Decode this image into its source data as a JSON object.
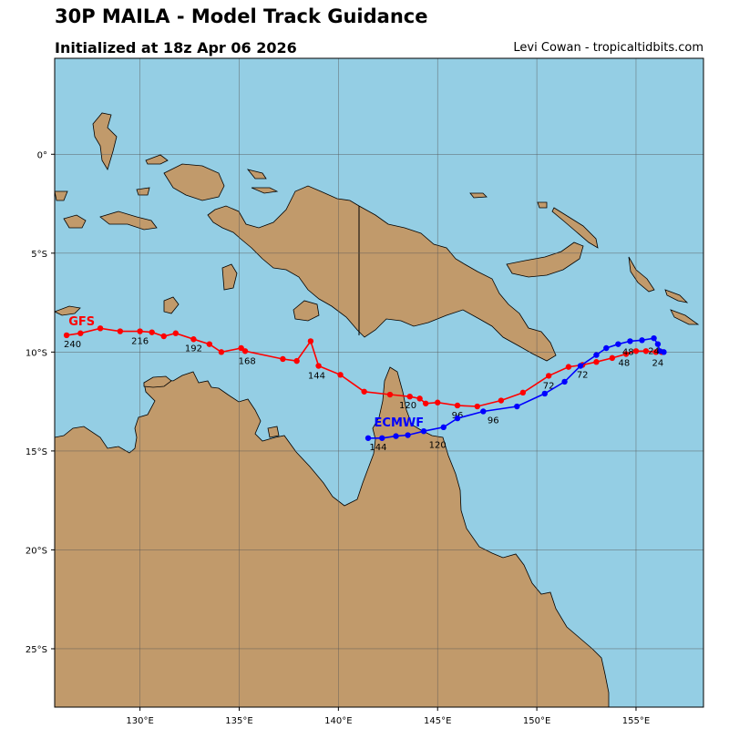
{
  "header": {
    "title": "30P MAILA - Model Track Guidance",
    "subtitle": "Initialized at 18z Apr 06 2026",
    "credit": "Levi Cowan - tropicaltidbits.com"
  },
  "colors": {
    "ocean": "#94cee4",
    "land": "#c19a6b",
    "gfs": "#ff0000",
    "ecmwf": "#0000ff",
    "grid": "#555555"
  },
  "map": {
    "lon_range": [
      125.7,
      158.4
    ],
    "lat_range": [
      -27.95,
      4.85
    ],
    "lon_ticks": [
      {
        "value": 130,
        "label": "130°E"
      },
      {
        "value": 135,
        "label": "135°E"
      },
      {
        "value": 140,
        "label": "140°E"
      },
      {
        "value": 145,
        "label": "145°E"
      },
      {
        "value": 150,
        "label": "150°E"
      },
      {
        "value": 155,
        "label": "155°E"
      }
    ],
    "lat_ticks": [
      {
        "value": 0,
        "label": "0°"
      },
      {
        "value": -5,
        "label": "5°S"
      },
      {
        "value": -10,
        "label": "10°S"
      },
      {
        "value": -15,
        "label": "15°S"
      },
      {
        "value": -20,
        "label": "20°S"
      },
      {
        "value": -25,
        "label": "25°S"
      }
    ]
  },
  "chart_data": {
    "type": "scatter",
    "title": "30P MAILA - Model Track Guidance",
    "series": [
      {
        "name": "GFS",
        "color": "#ff0000",
        "points": [
          [
            156.3,
            -10.0
          ],
          [
            156.0,
            -10.0
          ],
          [
            155.5,
            -9.95
          ],
          [
            155.0,
            -9.95
          ],
          [
            154.5,
            -10.1
          ],
          [
            153.8,
            -10.3
          ],
          [
            153.0,
            -10.5
          ],
          [
            152.3,
            -10.65
          ],
          [
            151.6,
            -10.75
          ],
          [
            150.6,
            -11.2
          ],
          [
            149.3,
            -12.05
          ],
          [
            148.2,
            -12.45
          ],
          [
            147.0,
            -12.75
          ],
          [
            146.0,
            -12.7
          ],
          [
            145.0,
            -12.55
          ],
          [
            144.4,
            -12.6
          ],
          [
            144.1,
            -12.35
          ],
          [
            143.6,
            -12.25
          ],
          [
            142.6,
            -12.15
          ],
          [
            141.3,
            -12.0
          ],
          [
            140.1,
            -11.15
          ],
          [
            139.0,
            -10.7
          ],
          [
            138.6,
            -9.45
          ],
          [
            137.9,
            -10.45
          ],
          [
            137.2,
            -10.35
          ],
          [
            135.3,
            -9.95
          ],
          [
            135.1,
            -9.8
          ],
          [
            134.1,
            -10.0
          ],
          [
            133.5,
            -9.6
          ],
          [
            132.7,
            -9.35
          ],
          [
            131.8,
            -9.05
          ],
          [
            131.2,
            -9.2
          ],
          [
            130.6,
            -9.0
          ],
          [
            130.0,
            -8.95
          ],
          [
            129.0,
            -8.95
          ],
          [
            128.0,
            -8.8
          ],
          [
            127.0,
            -9.05
          ],
          [
            126.3,
            -9.15
          ]
        ],
        "hour_labels": [
          {
            "text": "24",
            "lon": 156.1,
            "lat": -10.7
          },
          {
            "text": "48",
            "lon": 154.4,
            "lat": -10.7
          },
          {
            "text": "72",
            "lon": 150.6,
            "lat": -11.85
          },
          {
            "text": "96",
            "lon": 146.0,
            "lat": -13.35
          },
          {
            "text": "120",
            "lon": 143.5,
            "lat": -12.85
          },
          {
            "text": "144",
            "lon": 138.9,
            "lat": -11.35
          },
          {
            "text": "168",
            "lon": 135.4,
            "lat": -10.6
          },
          {
            "text": "192",
            "lon": 132.7,
            "lat": -9.95
          },
          {
            "text": "216",
            "lon": 130.0,
            "lat": -9.6
          },
          {
            "text": "240",
            "lon": 126.6,
            "lat": -9.75
          }
        ],
        "model_label": {
          "text": "GFS",
          "lon": 126.4,
          "lat": -8.65
        }
      },
      {
        "name": "ECMWF",
        "color": "#0000ff",
        "points": [
          [
            156.4,
            -10.0
          ],
          [
            156.2,
            -9.95
          ],
          [
            156.1,
            -9.6
          ],
          [
            155.9,
            -9.3
          ],
          [
            155.3,
            -9.4
          ],
          [
            154.7,
            -9.45
          ],
          [
            154.1,
            -9.6
          ],
          [
            153.5,
            -9.8
          ],
          [
            153.0,
            -10.15
          ],
          [
            152.2,
            -10.7
          ],
          [
            151.4,
            -11.5
          ],
          [
            150.4,
            -12.1
          ],
          [
            149.0,
            -12.75
          ],
          [
            147.3,
            -13.0
          ],
          [
            146.0,
            -13.35
          ],
          [
            145.3,
            -13.8
          ],
          [
            144.3,
            -14.0
          ],
          [
            143.5,
            -14.2
          ],
          [
            142.9,
            -14.25
          ],
          [
            142.2,
            -14.35
          ],
          [
            141.5,
            -14.35
          ]
        ],
        "hour_labels": [
          {
            "text": "24",
            "lon": 155.9,
            "lat": -10.1
          },
          {
            "text": "48",
            "lon": 154.6,
            "lat": -10.15
          },
          {
            "text": "72",
            "lon": 152.3,
            "lat": -11.3
          },
          {
            "text": "96",
            "lon": 147.8,
            "lat": -13.6
          },
          {
            "text": "120",
            "lon": 145.0,
            "lat": -14.85
          },
          {
            "text": "144",
            "lon": 142.0,
            "lat": -14.95
          }
        ],
        "model_label": {
          "text": "ECMWF",
          "lon": 141.8,
          "lat": -13.75
        }
      }
    ]
  }
}
